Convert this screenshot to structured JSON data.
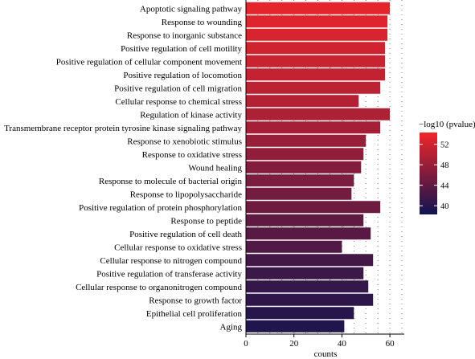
{
  "chart_data": {
    "type": "bar",
    "orientation": "horizontal",
    "xlabel": "counts",
    "xlim": [
      0,
      66
    ],
    "xticks": [
      0,
      20,
      40,
      60
    ],
    "grid": "dotted vertical",
    "categories": [
      "Apoptotic signaling pathway",
      "Response to wounding",
      "Response to inorganic substance",
      "Positive regulation of cell motility",
      "Positive regulation of cellular component movement",
      "Positive regulation of locomotion",
      "Positive regulation of cell migration",
      "Cellular response to chemical stress",
      "Regulation of kinase activity",
      "Transmembrane receptor protein tyrosine kinase signaling pathway",
      "Response to xenobiotic stimulus",
      "Response to oxidative stress",
      "Wound healing",
      "Response to molecule of bacterial origin",
      "Response to lipopolysaccharide",
      "Positive regulation of protein phosphorylation",
      "Response to peptide",
      "Positive regulation of cell death",
      "Cellular response to oxidative stress",
      "Cellular response to nitrogen compound",
      "Positive regulation of transferase activity",
      "Cellular response to organonitrogen compound",
      "Response to growth factor",
      "Epithelial cell proliferation",
      "Aging"
    ],
    "values": [
      60,
      59,
      59,
      58,
      58,
      58,
      56,
      47,
      60,
      56,
      50,
      49,
      48,
      45,
      44,
      56,
      49,
      52,
      40,
      53,
      49,
      51,
      53,
      45,
      41
    ],
    "color_values": [
      53.5,
      53,
      52.5,
      52,
      51.5,
      51,
      50.5,
      50,
      49.5,
      49,
      48,
      47.5,
      46.5,
      46,
      45.5,
      45,
      44,
      43.5,
      43,
      42,
      41.5,
      41,
      40.5,
      40,
      39.5
    ],
    "legend": {
      "title": "−log10 (pvalue)",
      "ticks": [
        40,
        44,
        48,
        52
      ],
      "range": [
        38.3,
        54.3
      ],
      "low_color": "#0f1450",
      "high_color": "#f0262a",
      "placement": "right"
    }
  }
}
